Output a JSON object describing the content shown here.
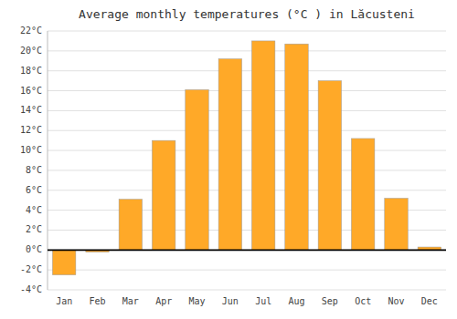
{
  "chart_data": {
    "type": "bar",
    "title": "Average monthly temperatures (°C ) in Lăcusteni",
    "categories": [
      "Jan",
      "Feb",
      "Mar",
      "Apr",
      "May",
      "Jun",
      "Jul",
      "Aug",
      "Sep",
      "Oct",
      "Nov",
      "Dec"
    ],
    "values": [
      -2.5,
      -0.2,
      5.1,
      11.0,
      16.1,
      19.2,
      21.0,
      20.7,
      17.0,
      11.2,
      5.2,
      0.3
    ],
    "color": "#FFA928",
    "ylim": [
      -4,
      22
    ],
    "yticks": [
      {
        "value": -4,
        "label": "-4°C"
      },
      {
        "value": -2,
        "label": "-2°C"
      },
      {
        "value": 0,
        "label": "0°C"
      },
      {
        "value": 2,
        "label": "2°C"
      },
      {
        "value": 4,
        "label": "4°C"
      },
      {
        "value": 6,
        "label": "6°C"
      },
      {
        "value": 8,
        "label": "8°C"
      },
      {
        "value": 10,
        "label": "10°C"
      },
      {
        "value": 12,
        "label": "12°C"
      },
      {
        "value": 14,
        "label": "14°C"
      },
      {
        "value": 16,
        "label": "16°C"
      },
      {
        "value": 18,
        "label": "18°C"
      },
      {
        "value": 20,
        "label": "20°C"
      },
      {
        "value": 22,
        "label": "22°C"
      }
    ],
    "grid": true
  }
}
